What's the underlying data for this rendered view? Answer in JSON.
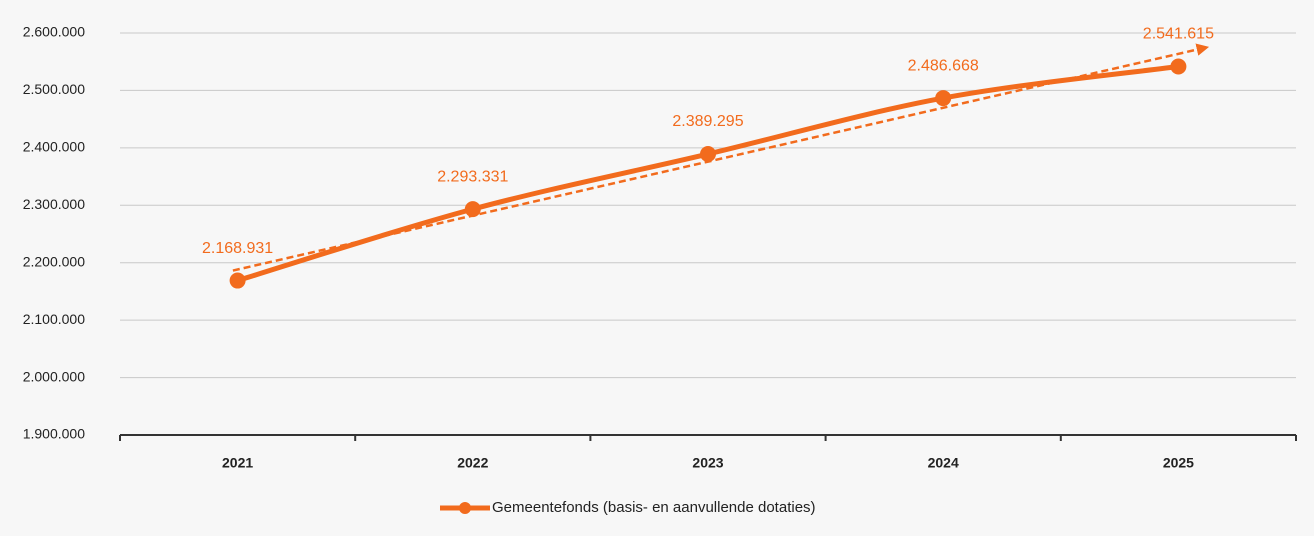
{
  "chart_data": {
    "type": "line",
    "categories": [
      "2021",
      "2022",
      "2023",
      "2024",
      "2025"
    ],
    "series": [
      {
        "name": "Gemeentefonds (basis- en aanvullende dotaties)",
        "color": "#f26b1d",
        "values": [
          2168931,
          2293331,
          2389295,
          2486668,
          2541615
        ],
        "value_labels": [
          "2.168.931",
          "2.293.331",
          "2.389.295",
          "2.486.668",
          "2.541.615"
        ]
      }
    ],
    "ylim": [
      1900000,
      2600000
    ],
    "yticks": [
      {
        "value": 1900000,
        "label": "1.900.000"
      },
      {
        "value": 2000000,
        "label": "2.000.000"
      },
      {
        "value": 2100000,
        "label": "2.100.000"
      },
      {
        "value": 2200000,
        "label": "2.200.000"
      },
      {
        "value": 2300000,
        "label": "2.300.000"
      },
      {
        "value": 2400000,
        "label": "2.400.000"
      },
      {
        "value": 2500000,
        "label": "2.500.000"
      },
      {
        "value": 2600000,
        "label": "2.600.000"
      }
    ],
    "grid": true,
    "trendline": true,
    "legend": "bottom"
  }
}
